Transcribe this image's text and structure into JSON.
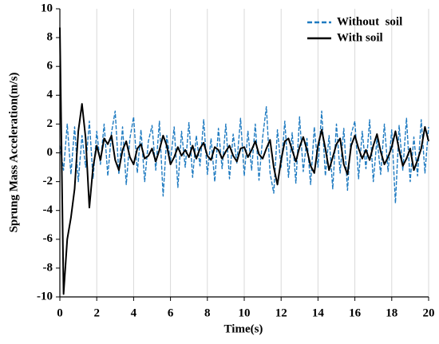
{
  "chart_data": {
    "type": "line",
    "xlabel": "Time(s)",
    "ylabel": "Sprung Mass Acceleration(m/s)",
    "x": [
      0,
      0.2,
      0.4,
      0.6,
      0.8,
      1,
      1.2,
      1.4,
      1.6,
      1.8,
      2,
      2.2,
      2.4,
      2.6,
      2.8,
      3,
      3.2,
      3.4,
      3.6,
      3.8,
      4,
      4.2,
      4.4,
      4.6,
      4.8,
      5,
      5.2,
      5.4,
      5.6,
      5.8,
      6,
      6.2,
      6.4,
      6.6,
      6.8,
      7,
      7.2,
      7.4,
      7.6,
      7.8,
      8,
      8.2,
      8.4,
      8.6,
      8.8,
      9,
      9.2,
      9.4,
      9.6,
      9.8,
      10,
      10.2,
      10.4,
      10.6,
      10.8,
      11,
      11.2,
      11.4,
      11.6,
      11.8,
      12,
      12.2,
      12.4,
      12.6,
      12.8,
      13,
      13.2,
      13.4,
      13.6,
      13.8,
      14,
      14.2,
      14.4,
      14.6,
      14.8,
      15,
      15.2,
      15.4,
      15.6,
      15.8,
      16,
      16.2,
      16.4,
      16.6,
      16.8,
      17,
      17.2,
      17.4,
      17.6,
      17.8,
      18,
      18.2,
      18.4,
      18.6,
      18.8,
      19,
      19.2,
      19.4,
      19.6,
      19.8,
      20
    ],
    "series": [
      {
        "name": "Without  soil",
        "color": "#1f7bc1",
        "dash": true,
        "values": [
          0.5,
          -1.2,
          2.0,
          -1.5,
          1.8,
          -2.0,
          1.2,
          -1.0,
          2.2,
          -1.8,
          1.5,
          -0.8,
          2.0,
          -1.6,
          1.4,
          2.9,
          -1.5,
          1.8,
          -2.2,
          1.0,
          2.5,
          -1.4,
          1.6,
          -2.0,
          0.8,
          1.9,
          -1.2,
          2.2,
          -3.0,
          1.2,
          -0.6,
          1.8,
          -2.4,
          1.5,
          -1.0,
          2.1,
          -1.7,
          1.2,
          -0.9,
          2.3,
          -1.5,
          1.0,
          -2.0,
          1.7,
          -1.1,
          2.0,
          -1.8,
          1.3,
          -0.7,
          2.4,
          -1.6,
          1.5,
          -1.2,
          2.0,
          -1.9,
          1.1,
          3.2,
          -1.4,
          -2.8,
          1.6,
          -1.0,
          2.2,
          -1.7,
          1.4,
          -2.1,
          2.5,
          -1.3,
          1.0,
          -2.2,
          1.8,
          -1.0,
          2.9,
          -1.6,
          1.2,
          -2.5,
          2.0,
          -1.4,
          1.7,
          -2.6,
          1.3,
          2.2,
          -1.8,
          1.5,
          -1.1,
          2.3,
          -2.0,
          1.0,
          -1.5,
          2.0,
          -1.3,
          1.6,
          -3.5,
          1.9,
          -1.2,
          2.4,
          -2.0,
          1.1,
          -1.6,
          2.3,
          -1.4,
          1.8
        ]
      },
      {
        "name": "With soil",
        "color": "#000000",
        "dash": false,
        "values": [
          8.7,
          -9.8,
          -6,
          -4.5,
          -2.5,
          1.5,
          3.4,
          1,
          -3.8,
          -1,
          0.5,
          -0.5,
          1,
          0.6,
          1.2,
          -0.5,
          -1.2,
          0.2,
          0.8,
          -0.3,
          -0.8,
          0.3,
          0.6,
          -0.4,
          -0.2,
          0.3,
          -0.6,
          0.2,
          1.2,
          0.5,
          -0.8,
          -0.3,
          0.4,
          -0.2,
          0.2,
          -0.3,
          0.5,
          -0.4,
          0.3,
          0.7,
          -0.2,
          -0.5,
          0.4,
          0.2,
          -0.4,
          0.1,
          0.5,
          -0.2,
          -0.6,
          0.3,
          0.4,
          -0.3,
          0.2,
          0.8,
          -0.1,
          -0.4,
          0.3,
          0.9,
          -1.0,
          -2.2,
          -0.5,
          0.8,
          1.0,
          0.2,
          -0.6,
          0.4,
          1.1,
          0.2,
          -0.9,
          -1.4,
          0.5,
          1.6,
          0.3,
          -1.2,
          -0.3,
          0.6,
          1.0,
          -0.8,
          -1.5,
          0.5,
          1.2,
          0.3,
          -0.4,
          0.2,
          -0.5,
          0.5,
          1.3,
          0.1,
          -0.8,
          -0.3,
          0.4,
          1.5,
          0.2,
          -0.9,
          -0.4,
          0.3,
          -1.2,
          -0.5,
          0.3,
          1.8,
          0.8
        ]
      }
    ],
    "xlim": [
      0,
      20
    ],
    "xticks": [
      0,
      2,
      4,
      6,
      8,
      10,
      12,
      14,
      16,
      18,
      20
    ],
    "ylim": [
      -10,
      10
    ],
    "yticks": [
      -10,
      -8,
      -6,
      -4,
      -2,
      0,
      2,
      4,
      6,
      8,
      10
    ],
    "grid": "x",
    "legend": "upper right"
  }
}
